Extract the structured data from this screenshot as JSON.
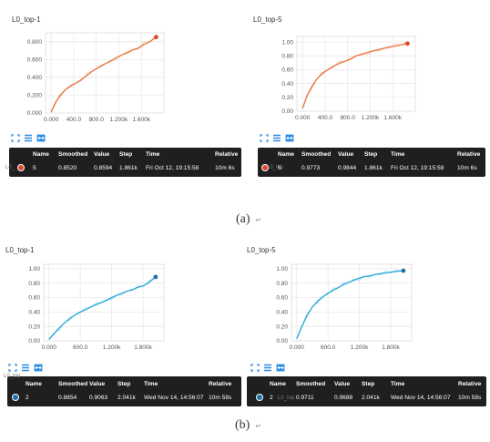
{
  "colors": {
    "orange": "#e8743b",
    "orange_dot": "#e0472a",
    "blue": "#27a7d6",
    "blue_dot": "#1f6fa8",
    "icon_blue": "#2d8ae6",
    "grid": "#e6e6e6",
    "tooltip_bg": "#1f1f1f"
  },
  "icons": {
    "expand": "expand-icon",
    "list": "list-icon",
    "fit": "fit-domain-icon"
  },
  "tooltip_headers": [
    "Name",
    "Smoothed",
    "Value",
    "Step",
    "Time",
    "Relative"
  ],
  "panels": [
    {
      "title": "L0_top-1",
      "tooltip": {
        "run": "L0_",
        "name": "5",
        "smoothed": "0.8520",
        "value": "0.8594",
        "step": "1.861k",
        "time": "Fri Oct 12, 19:15:58",
        "relative": "10m 6s"
      }
    },
    {
      "title": "L0_top-5",
      "tooltip": {
        "run": "L0_top",
        "name": "5",
        "smoothed": "0.9773",
        "value": "0.9844",
        "step": "1.861k",
        "time": "Fri Oct 12, 19:15:58",
        "relative": "10m 6s"
      }
    },
    {
      "title": "L0_top-1",
      "tooltip": {
        "run": "L0_top",
        "name": "2",
        "smoothed": "0.8854",
        "value": "0.9063",
        "step": "2.041k",
        "time": "Wed Nov 14, 14:56:07",
        "relative": "10m 58s"
      }
    },
    {
      "title": "L0_top-5",
      "tooltip": {
        "run": "L0_top",
        "name": "2",
        "smoothed": "0.9711",
        "value": "0.9688",
        "step": "2.041k",
        "time": "Wed Nov 14, 14:56:07",
        "relative": "10m 58s"
      }
    }
  ],
  "captions": {
    "a": "(a)",
    "b": "(b)",
    "mark": "↵"
  },
  "chart_data": [
    {
      "type": "line",
      "title": "L0_top-1",
      "color": "#e8743b",
      "ylim": [
        0,
        0.9
      ],
      "yticks": [
        "0.000",
        "0.200",
        "0.400",
        "0.600",
        "0.800"
      ],
      "xticks": [
        "0.000",
        "400.0",
        "800.0",
        "1.200k",
        "1.600k"
      ],
      "xtick_values": [
        0,
        400,
        800,
        1200,
        1600
      ],
      "xlim": [
        -100,
        2000
      ],
      "series": [
        {
          "x": [
            0,
            80,
            160,
            250,
            350,
            450,
            550,
            650,
            750,
            850,
            950,
            1050,
            1150,
            1250,
            1350,
            1450,
            1550,
            1650,
            1750,
            1861
          ],
          "y": [
            0.01,
            0.12,
            0.2,
            0.26,
            0.31,
            0.34,
            0.38,
            0.43,
            0.48,
            0.51,
            0.55,
            0.58,
            0.62,
            0.65,
            0.68,
            0.71,
            0.73,
            0.77,
            0.8,
            0.852
          ]
        }
      ],
      "last": [
        1861,
        0.852
      ]
    },
    {
      "type": "line",
      "title": "L0_top-5",
      "color": "#e8743b",
      "ylim": [
        0,
        1.08
      ],
      "yticks": [
        "0.00",
        "0.20",
        "0.40",
        "0.60",
        "0.80",
        "1.00"
      ],
      "xticks": [
        "0.000",
        "400.0",
        "800.0",
        "1.200k",
        "1.600k"
      ],
      "xtick_values": [
        0,
        400,
        800,
        1200,
        1600
      ],
      "xlim": [
        -100,
        2000
      ],
      "series": [
        {
          "x": [
            0,
            80,
            160,
            250,
            350,
            450,
            550,
            650,
            750,
            850,
            950,
            1050,
            1150,
            1250,
            1350,
            1450,
            1550,
            1650,
            1750,
            1861
          ],
          "y": [
            0.04,
            0.22,
            0.35,
            0.46,
            0.55,
            0.6,
            0.65,
            0.69,
            0.72,
            0.75,
            0.8,
            0.82,
            0.85,
            0.87,
            0.89,
            0.91,
            0.93,
            0.94,
            0.96,
            0.977
          ]
        }
      ],
      "last": [
        1861,
        0.977
      ]
    },
    {
      "type": "line",
      "title": "L0_top-1",
      "color": "#27a7d6",
      "ylim": [
        0,
        1.06
      ],
      "yticks": [
        "0.00",
        "0.20",
        "0.40",
        "0.60",
        "0.80",
        "1.00"
      ],
      "xticks": [
        "0.000",
        "600.0",
        "1.200k",
        "1.800k"
      ],
      "xtick_values": [
        0,
        600,
        1200,
        1800
      ],
      "xlim": [
        -100,
        2200
      ],
      "series": [
        {
          "x": [
            0,
            100,
            200,
            300,
            400,
            500,
            600,
            700,
            800,
            900,
            1000,
            1100,
            1200,
            1300,
            1400,
            1500,
            1600,
            1700,
            1800,
            1900,
            2041
          ],
          "y": [
            0.02,
            0.1,
            0.18,
            0.25,
            0.31,
            0.36,
            0.4,
            0.43,
            0.47,
            0.5,
            0.53,
            0.56,
            0.6,
            0.63,
            0.66,
            0.69,
            0.71,
            0.74,
            0.76,
            0.8,
            0.885
          ]
        }
      ],
      "last": [
        2041,
        0.885
      ]
    },
    {
      "type": "line",
      "title": "L0_top-5",
      "color": "#27a7d6",
      "ylim": [
        0,
        1.06
      ],
      "yticks": [
        "0.00",
        "0.20",
        "0.40",
        "0.60",
        "0.80",
        "1.00"
      ],
      "xticks": [
        "0.000",
        "600.0",
        "1.200k",
        "1.800k"
      ],
      "xtick_values": [
        0,
        600,
        1200,
        1800
      ],
      "xlim": [
        -100,
        2200
      ],
      "series": [
        {
          "x": [
            0,
            100,
            200,
            300,
            400,
            500,
            600,
            700,
            800,
            900,
            1000,
            1100,
            1200,
            1300,
            1400,
            1500,
            1600,
            1700,
            1800,
            1900,
            2041
          ],
          "y": [
            0.03,
            0.2,
            0.36,
            0.47,
            0.55,
            0.61,
            0.66,
            0.7,
            0.74,
            0.78,
            0.81,
            0.84,
            0.87,
            0.89,
            0.9,
            0.92,
            0.93,
            0.94,
            0.95,
            0.96,
            0.971
          ]
        }
      ],
      "last": [
        2041,
        0.971
      ]
    }
  ]
}
